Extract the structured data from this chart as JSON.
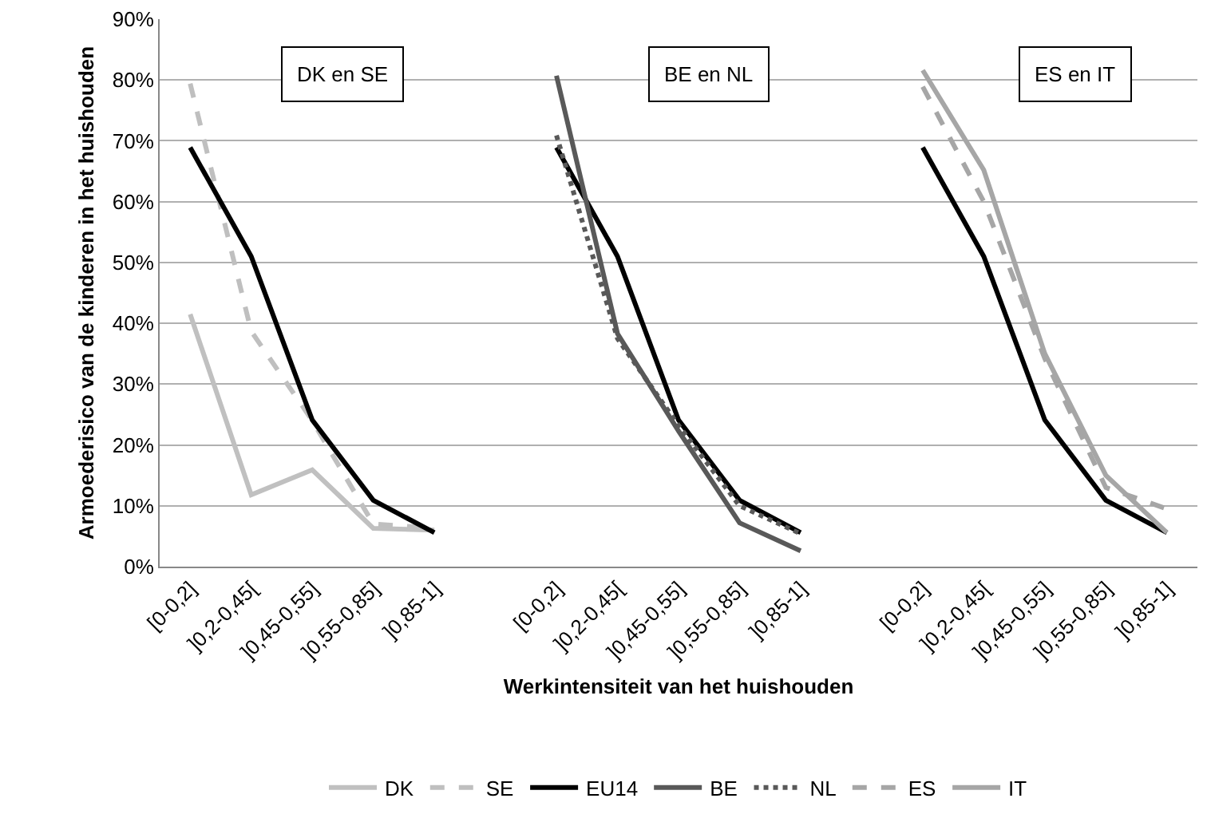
{
  "chart_data": {
    "type": "line",
    "xlabel": "Werkintensiteit van het huishouden",
    "ylabel": "Armoederisico van de kinderen in het huishouden",
    "categories": [
      "[0-0,2]",
      "]0,2-0,45[",
      "]0,45-0,55]",
      "]0,55-0,85]",
      "]0,85-1]",
      null,
      "[0-0,2]",
      "]0,2-0,45[",
      "]0,45-0,55]",
      "]0,55-0,85]",
      "]0,85-1]",
      null,
      "[0-0,2]",
      "]0,2-0,45[",
      "]0,45-0,55]",
      "]0,55-0,85]",
      "]0,85-1]"
    ],
    "series": [
      {
        "name": "DK",
        "color": "#c0c0c0",
        "line_style": "solid",
        "values": [
          41.5,
          11.8,
          15.9,
          6.3,
          6,
          null,
          null,
          null,
          null,
          null,
          null,
          null,
          null,
          null,
          null,
          null,
          null
        ]
      },
      {
        "name": "SE",
        "color": "#bfbfbf",
        "line_style": "dashed",
        "values": [
          79.4,
          38.7,
          24,
          7,
          6.3,
          null,
          null,
          null,
          null,
          null,
          null,
          null,
          null,
          null,
          null,
          null,
          null
        ]
      },
      {
        "name": "EU14",
        "color": "#000000",
        "line_style": "solid",
        "values": [
          68.9,
          51,
          24.1,
          10.9,
          5.6,
          null,
          68.9,
          51,
          24.1,
          10.9,
          5.6,
          null,
          68.9,
          51,
          24.1,
          10.9,
          5.6
        ]
      },
      {
        "name": "BE",
        "color": "#595959",
        "line_style": "solid",
        "values": [
          null,
          null,
          null,
          null,
          null,
          null,
          80.7,
          38.3,
          22.3,
          7.2,
          2.6,
          null,
          null,
          null,
          null,
          null,
          null
        ]
      },
      {
        "name": "NL",
        "color": "#595959",
        "line_style": "dotted",
        "values": [
          null,
          null,
          null,
          null,
          null,
          null,
          70.9,
          37.5,
          23.2,
          10,
          5.4,
          null,
          null,
          null,
          null,
          null,
          null
        ]
      },
      {
        "name": "ES",
        "color": "#a6a6a6",
        "line_style": "dashed",
        "values": [
          null,
          null,
          null,
          null,
          null,
          null,
          null,
          null,
          null,
          null,
          null,
          null,
          78.9,
          60,
          34.2,
          13,
          9.5
        ]
      },
      {
        "name": "IT",
        "color": "#a6a6a6",
        "line_style": "solid",
        "values": [
          null,
          null,
          null,
          null,
          null,
          null,
          null,
          null,
          null,
          null,
          null,
          null,
          81.6,
          65.2,
          35,
          15,
          5.6
        ]
      }
    ],
    "ylim": [
      0,
      90
    ],
    "yticks": [
      {
        "value": 0,
        "label": "0%"
      },
      {
        "value": 10,
        "label": "10%"
      },
      {
        "value": 20,
        "label": "20%"
      },
      {
        "value": 30,
        "label": "30%"
      },
      {
        "value": 40,
        "label": "40%"
      },
      {
        "value": 50,
        "label": "50%"
      },
      {
        "value": 60,
        "label": "60%"
      },
      {
        "value": 70,
        "label": "70%"
      },
      {
        "value": 80,
        "label": "80%"
      },
      {
        "value": 90,
        "label": "90%"
      }
    ],
    "grid": "y",
    "legend": "bottom",
    "marker": "none",
    "annotations": [
      "DK en SE",
      "BE en NL",
      "ES en IT"
    ]
  }
}
